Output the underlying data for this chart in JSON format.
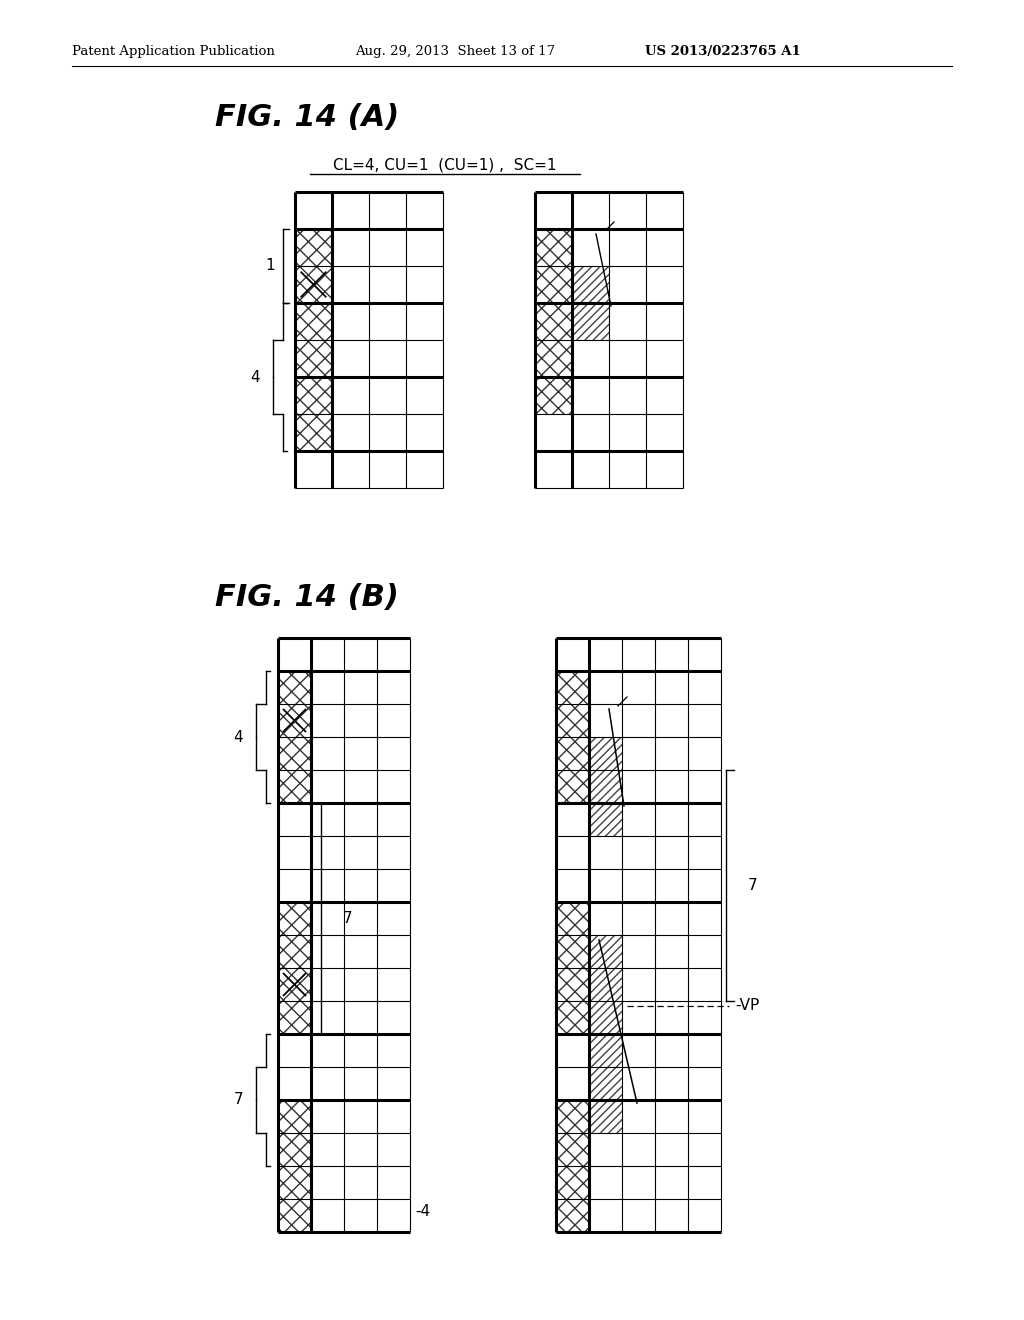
{
  "header_left": "Patent Application Publication",
  "header_mid": "Aug. 29, 2013  Sheet 13 of 17",
  "header_right": "US 2013/0223765 A1",
  "fig_a_title": "FIG. 14 (A)",
  "fig_a_subtitle": "CL=4, CU=1  (CU=1) ,  SC=1",
  "fig_b_title": "FIG. 14 (B)",
  "background_color": "#ffffff"
}
